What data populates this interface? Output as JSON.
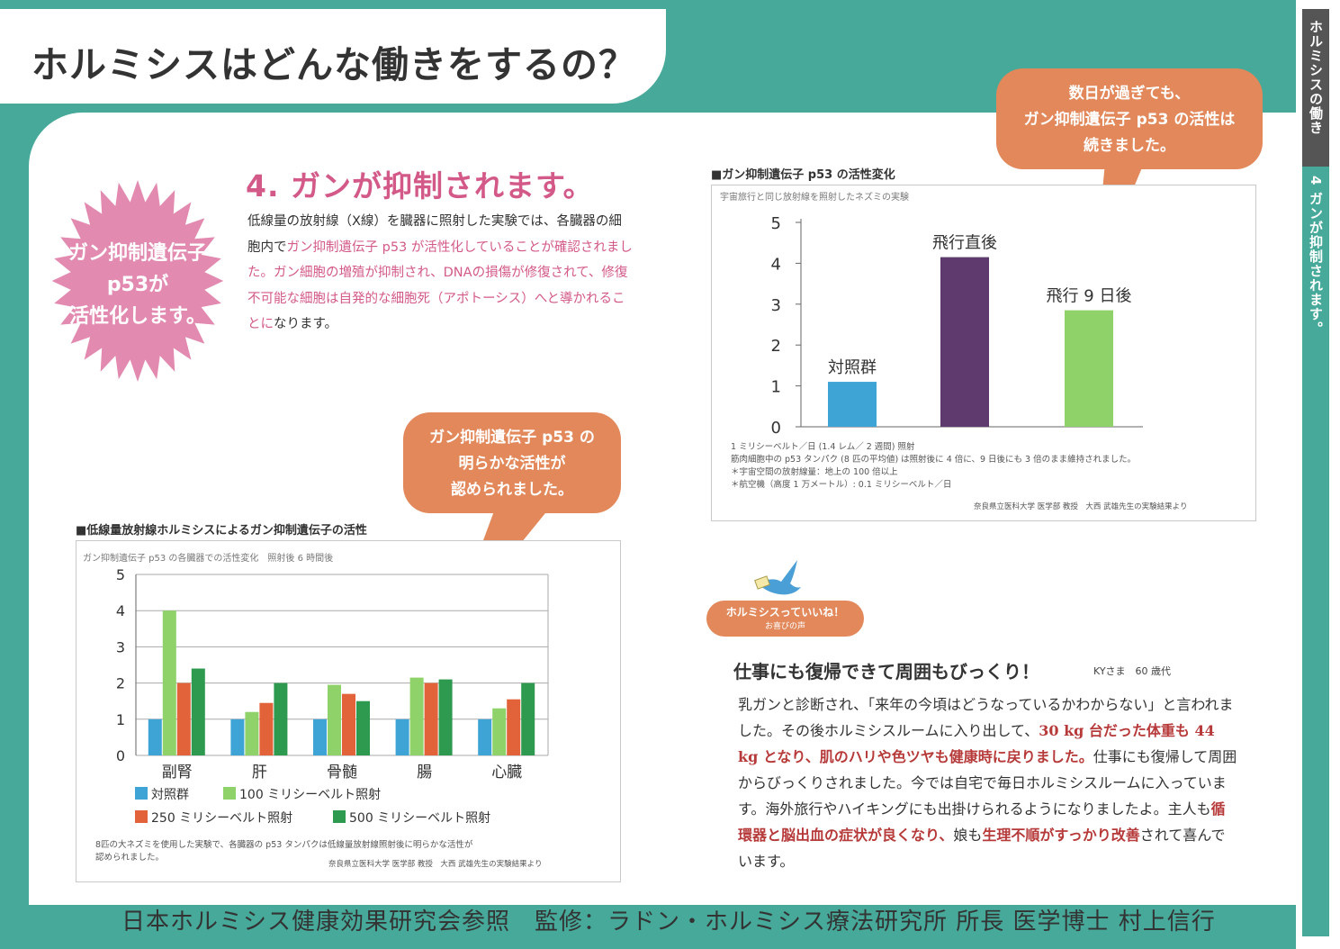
{
  "page": {
    "title": "ホルミシスはどんな働きをするの？",
    "side_tab_top": "ホルミシスの働き",
    "side_tab_bottom": "4 ガンが抑制されます。",
    "footer": "日本ホルミシス健康効果研究会参照　監修：ラドン・ホルミシス療法研究所 所長 医学博士 村上信行"
  },
  "section": {
    "badge_lines": [
      "ガン抑制遺伝子",
      "p53が",
      "活性化します。"
    ],
    "title": "4. ガンが抑制されます。",
    "body_1": "低線量の放射線（X線）を臓器に照射した実験では、各臓器の細胞内で",
    "body_hl": "ガン抑制遺伝子 p53 が活性化していることが確認されました。ガン細胞の増殖が抑制され、DNAの損傷が修復されて、修復不可能な細胞は自発的な細胞死（アポトーシス）へと導かれることに",
    "body_2": "なります。"
  },
  "callout_left": [
    "ガン抑制遺伝子 p53 の",
    "明らかな活性が",
    "認められました。"
  ],
  "callout_right": [
    "数日が過ぎても、",
    "ガン抑制遺伝子 p53 の活性は",
    "続きました。"
  ],
  "chart_left_meta": {
    "heading": "■低線量放射線ホルミシスによるガン抑制遺伝子の活性",
    "note_1": "8匹の大ネズミを使用した実験で、各臓器の p53 タンパクは低線量放射線照射後に明らかな活性が",
    "note_2": "認められました。",
    "source": "奈良県立医科大学 医学部 教授　大西 武雄先生の実験結果より"
  },
  "chart_right_meta": {
    "heading": "■ガン抑制遺伝子 p53 の活性変化",
    "notes": [
      "1 ミリシーベルト／日 (1.4 レム／ 2 週間) 照射",
      "筋肉細胞中の p53 タンパク (8 匹の平均値) は照射後に 4 倍に、9 日後にも 3 倍のまま維持されました。",
      "＊宇宙空間の放射線量：地上の 100 倍以上",
      "＊航空機（高度 1 万メートル）: 0.1 ミリシーベルト／日"
    ],
    "source": "奈良県立医科大学 医学部 教授　大西 武雄先生の実験結果より"
  },
  "chart_data": [
    {
      "type": "bar",
      "subtitle": "ガン抑制遺伝子 p53 の各臓器での活性変化　照射後 6 時間後",
      "categories": [
        "副腎",
        "肝",
        "骨髄",
        "腸",
        "心臓"
      ],
      "ylim": [
        0,
        5
      ],
      "yticks": [
        "0",
        "1",
        "2",
        "3",
        "4",
        "5"
      ],
      "grid": true,
      "legend_position": "bottom",
      "series": [
        {
          "name": "対照群",
          "color": "#3ea4d6",
          "values": [
            1.0,
            1.0,
            1.0,
            1.0,
            1.0
          ]
        },
        {
          "name": "100 ミリシーベルト照射",
          "color": "#8fd26a",
          "values": [
            4.0,
            1.2,
            1.95,
            2.15,
            1.3
          ]
        },
        {
          "name": "250 ミリシーベルト照射",
          "color": "#e2623a",
          "values": [
            2.0,
            1.45,
            1.7,
            2.0,
            1.55
          ]
        },
        {
          "name": "500 ミリシーベルト照射",
          "color": "#2e9a50",
          "values": [
            2.4,
            2.0,
            1.5,
            2.1,
            2.0
          ]
        }
      ]
    },
    {
      "type": "bar",
      "subtitle": "宇宙旅行と同じ放射線を照射したネズミの実験",
      "categories": [
        "対照群",
        "飛行直後",
        "飛行 9 日後"
      ],
      "values": [
        1.1,
        4.15,
        2.85
      ],
      "colors": [
        "#3ea4d6",
        "#5e3a6e",
        "#8fd26a"
      ],
      "ylim": [
        0,
        5
      ],
      "yticks": [
        "0",
        "1",
        "2",
        "3",
        "4",
        "5"
      ],
      "grid": false
    }
  ],
  "testimonial": {
    "badge_line_1": "ホルミシスっていいね！",
    "badge_line_2": "お喜びの声",
    "title": "仕事にも復帰できて周囲もびっくり！",
    "signature": "KYさま　60 歳代",
    "p1": "乳ガンと診断され、「来年の今頃はどうなっているかわからない」と言われました。その後ホルミシスルームに入り出して、",
    "hl1": "30 kg 台だった体重も 44 kg となり、肌のハリや色ツヤも健康時に戻りました。",
    "p2": "仕事にも復帰して周囲からびっくりされました。今では自宅で毎日ホルミシスルームに入っています。海外旅行やハイキングにも出掛けられるようになりましたよ。主人も",
    "hl2": "循環器と脳出血の症状が良くなり、",
    "p3": "娘も",
    "hl3": "生理不順がすっかり改善",
    "p4": "されて喜んでいます。"
  }
}
